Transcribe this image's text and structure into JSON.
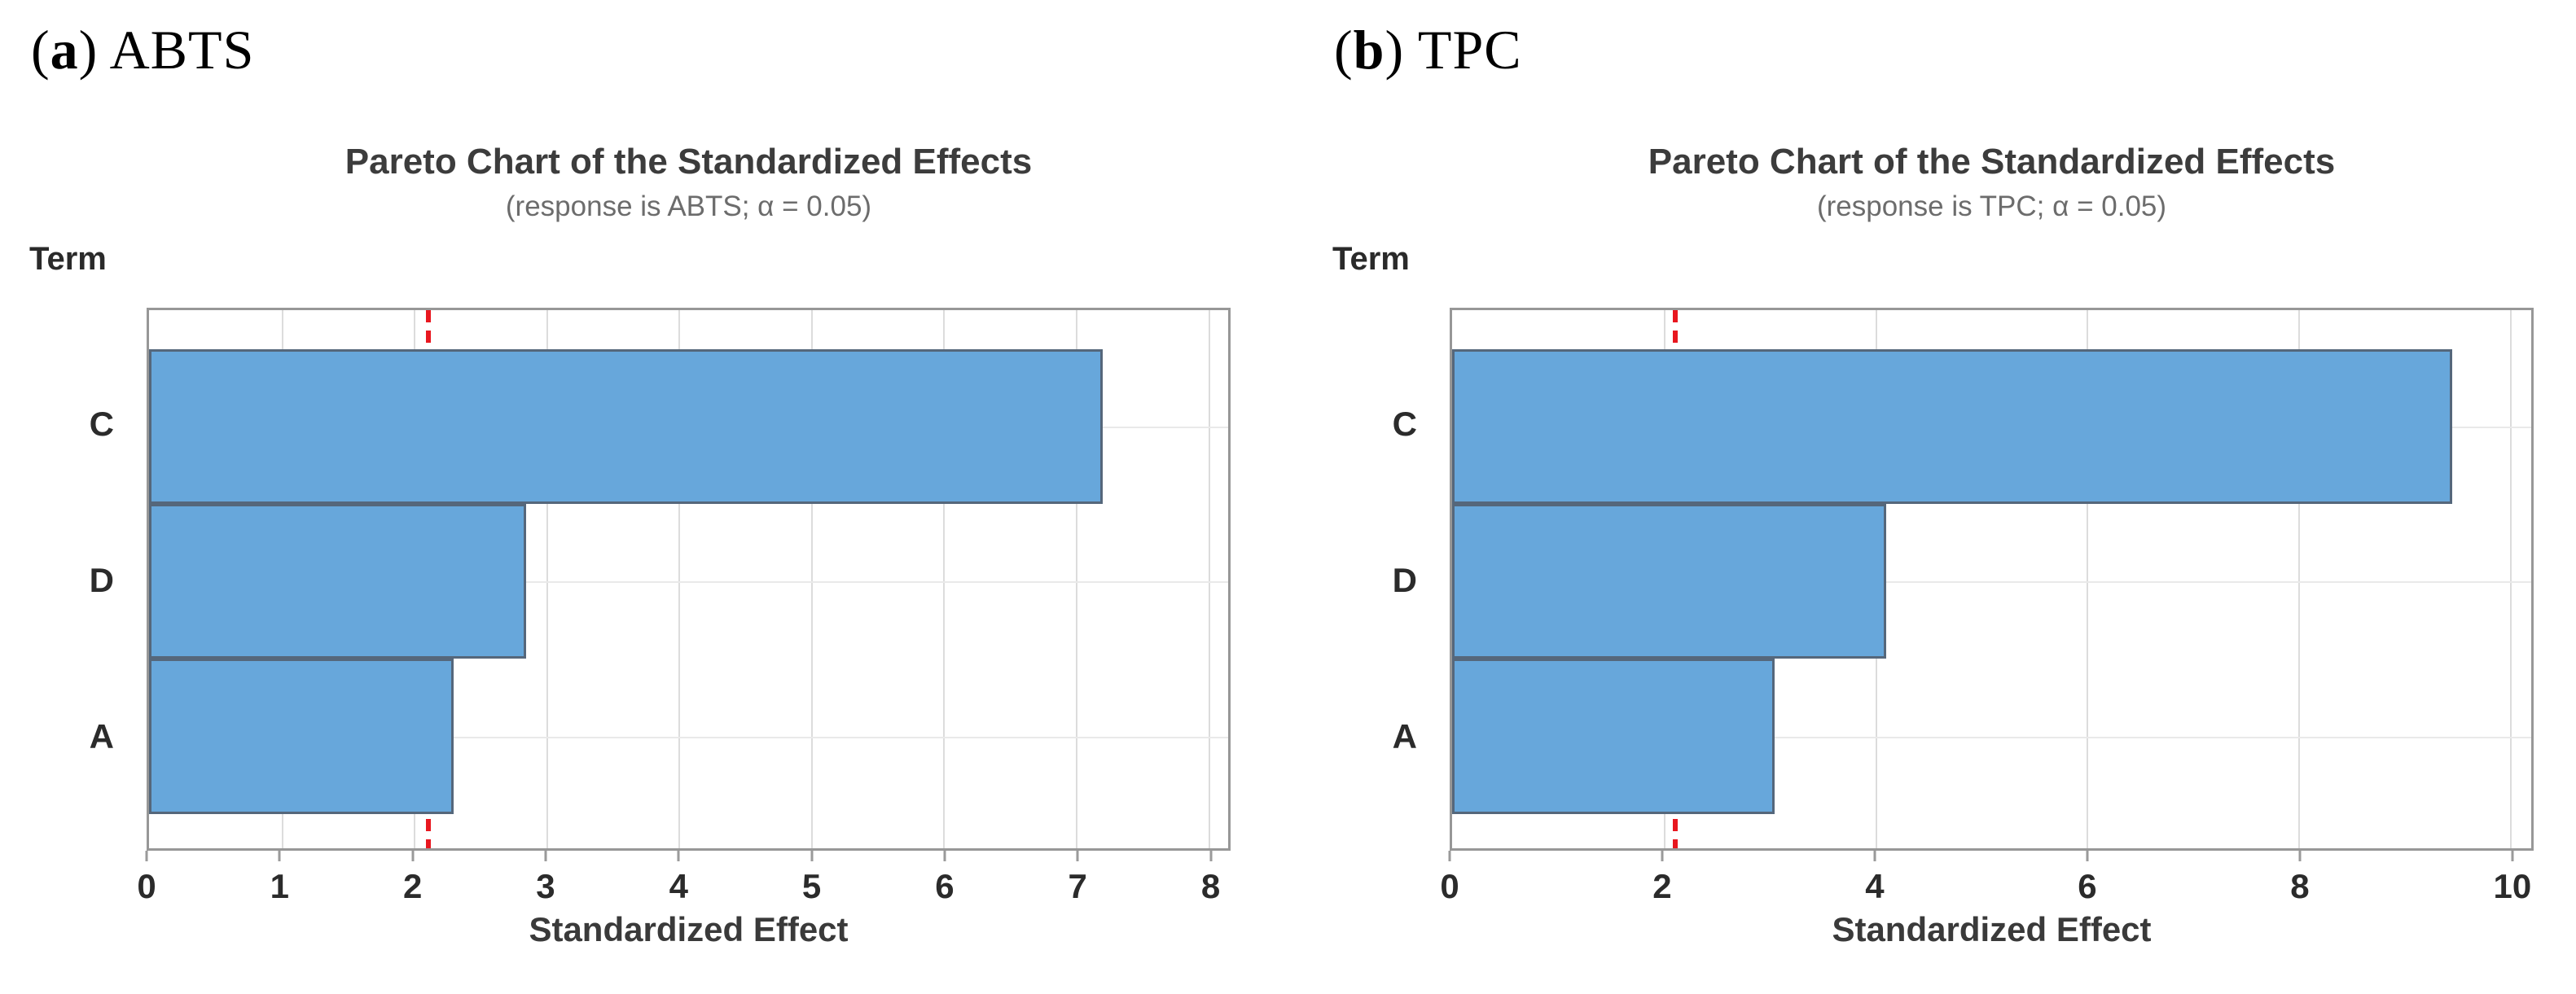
{
  "panels": [
    {
      "label": {
        "open": "(",
        "letter": "a",
        "close": ") ",
        "name": "ABTS"
      }
    },
    {
      "label": {
        "open": "(",
        "letter": "b",
        "close": ") ",
        "name": "TPC"
      }
    }
  ],
  "chart_data": [
    {
      "type": "bar",
      "orientation": "horizontal",
      "title": "Pareto Chart of the Standardized Effects",
      "subtitle": "(response is ABTS; α = 0.05)",
      "ylabel": "Term",
      "xlabel": "Standardized Effect",
      "categories": [
        "C",
        "D",
        "A"
      ],
      "values": [
        7.2,
        2.85,
        2.3
      ],
      "reference_line": 2.11,
      "xlim": [
        0,
        8.15
      ],
      "xticks": [
        0,
        1,
        2,
        3,
        4,
        5,
        6,
        7,
        8
      ],
      "grid": true,
      "legend": "none",
      "colors": {
        "bar_fill": "#67a7db",
        "bar_border": "#55677b",
        "reference_line": "#e8171f",
        "gridline": "#dcdcdc",
        "plot_border": "#979797",
        "title_text": "#3c3c3c",
        "subtitle_text": "#6c6c6c",
        "tick_text": "#2b2b2b"
      }
    },
    {
      "type": "bar",
      "orientation": "horizontal",
      "title": "Pareto Chart of the Standardized Effects",
      "subtitle": "(response is TPC; α = 0.05)",
      "ylabel": "Term",
      "xlabel": "Standardized Effect",
      "categories": [
        "C",
        "D",
        "A"
      ],
      "values": [
        9.45,
        4.1,
        3.05
      ],
      "reference_line": 2.11,
      "xlim": [
        0,
        10.2
      ],
      "xticks": [
        0,
        2,
        4,
        6,
        8,
        10
      ],
      "grid": true,
      "legend": "none",
      "colors": {
        "bar_fill": "#67a7db",
        "bar_border": "#55677b",
        "reference_line": "#e8171f",
        "gridline": "#dcdcdc",
        "plot_border": "#979797",
        "title_text": "#3c3c3c",
        "subtitle_text": "#6c6c6c",
        "tick_text": "#2b2b2b"
      }
    }
  ]
}
